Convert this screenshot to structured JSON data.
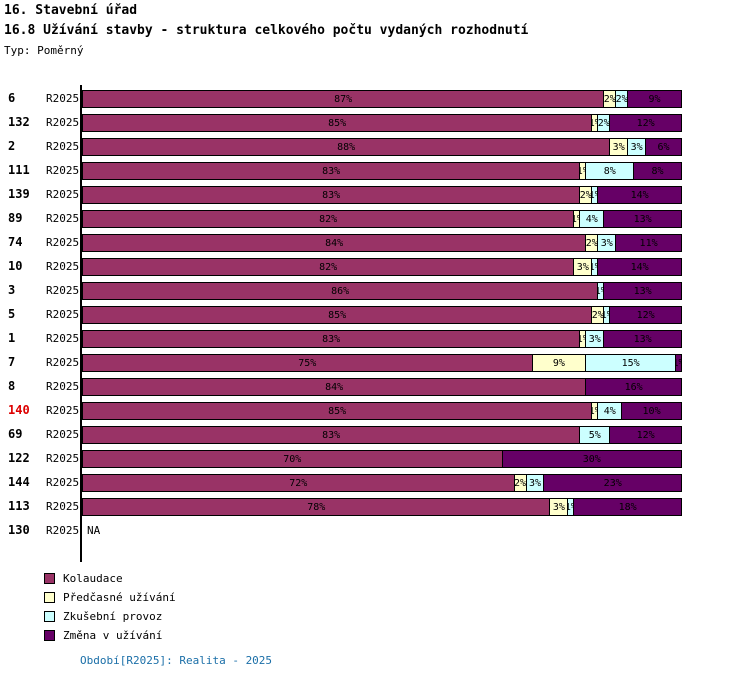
{
  "header": {
    "title": "16. Stavební úřad",
    "subtitle": "16.8 Užívání stavby - struktura celkového počtu vydaných rozhodnutí",
    "type_label": "Typ: Poměrný"
  },
  "chart_data": {
    "type": "bar",
    "orientation": "horizontal",
    "stacked": true,
    "unit": "%",
    "xlim": [
      0,
      100
    ],
    "grid": false,
    "legend_position": "bottom-left",
    "period_label": "R2025",
    "na_label": "NA",
    "highlight_color": "#dd0000",
    "legend": [
      {
        "label": "Kolaudace",
        "color": "#993366"
      },
      {
        "label": "Předčasné užívání",
        "color": "#FFFFCC"
      },
      {
        "label": "Zkušební provoz",
        "color": "#CCFFFF"
      },
      {
        "label": "Změna v užívání",
        "color": "#660066"
      }
    ],
    "series_order": [
      "Kolaudace",
      "Předčasné užívání",
      "Zkušební provoz",
      "Změna v užívání"
    ],
    "rows": [
      {
        "id": "6",
        "na": false,
        "highlight": false,
        "values": [
          87,
          2,
          2,
          9
        ]
      },
      {
        "id": "132",
        "na": false,
        "highlight": false,
        "values": [
          85,
          1,
          2,
          12
        ]
      },
      {
        "id": "2",
        "na": false,
        "highlight": false,
        "values": [
          88,
          3,
          3,
          6
        ]
      },
      {
        "id": "111",
        "na": false,
        "highlight": false,
        "values": [
          83,
          1,
          8,
          8
        ]
      },
      {
        "id": "139",
        "na": false,
        "highlight": false,
        "values": [
          83,
          2,
          1,
          14
        ]
      },
      {
        "id": "89",
        "na": false,
        "highlight": false,
        "values": [
          82,
          1,
          4,
          13
        ]
      },
      {
        "id": "74",
        "na": false,
        "highlight": false,
        "values": [
          84,
          2,
          3,
          11
        ]
      },
      {
        "id": "10",
        "na": false,
        "highlight": false,
        "values": [
          82,
          3,
          1,
          14
        ]
      },
      {
        "id": "3",
        "na": false,
        "highlight": false,
        "values": [
          86,
          0,
          1,
          13
        ]
      },
      {
        "id": "5",
        "na": false,
        "highlight": false,
        "values": [
          85,
          2,
          1,
          12
        ]
      },
      {
        "id": "1",
        "na": false,
        "highlight": false,
        "values": [
          83,
          1,
          3,
          13
        ]
      },
      {
        "id": "7",
        "na": false,
        "highlight": false,
        "values": [
          75,
          9,
          15,
          1
        ]
      },
      {
        "id": "8",
        "na": false,
        "highlight": false,
        "values": [
          84,
          0,
          0,
          16
        ]
      },
      {
        "id": "140",
        "na": false,
        "highlight": true,
        "values": [
          85,
          1,
          4,
          10
        ]
      },
      {
        "id": "69",
        "na": false,
        "highlight": false,
        "values": [
          83,
          0,
          5,
          12
        ]
      },
      {
        "id": "122",
        "na": false,
        "highlight": false,
        "values": [
          70,
          0,
          0,
          30
        ]
      },
      {
        "id": "144",
        "na": false,
        "highlight": false,
        "values": [
          72,
          2,
          3,
          23
        ]
      },
      {
        "id": "113",
        "na": false,
        "highlight": false,
        "values": [
          78,
          3,
          1,
          18
        ]
      },
      {
        "id": "130",
        "na": true,
        "highlight": false,
        "values": null
      }
    ]
  },
  "footer": {
    "text": "Období[R2025]: Realita - 2025",
    "color": "#1b6fa8"
  }
}
